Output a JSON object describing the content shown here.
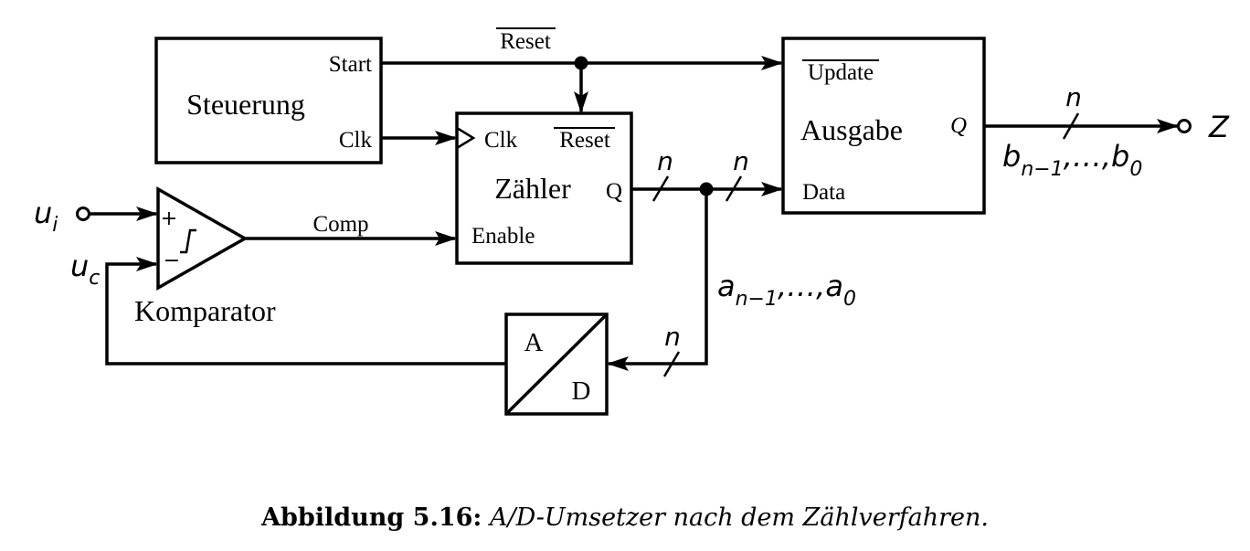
{
  "blocks": {
    "steuerung": {
      "title": "Steuerung",
      "port_start": "Start",
      "port_clk": "Clk"
    },
    "zaehler": {
      "title": "Zähler",
      "port_clk": "Clk",
      "port_reset": "Reset",
      "port_enable": "Enable",
      "port_q": "Q"
    },
    "ausgabe": {
      "title": "Ausgabe",
      "port_update": "Update",
      "port_data": "Data",
      "port_q": "Q"
    },
    "adc": {
      "top": "A",
      "bottom": "D"
    },
    "komparator": {
      "title": "Komparator",
      "plus": "+",
      "minus": "−"
    }
  },
  "signals": {
    "reset": "Reset",
    "comp": "Comp",
    "ui_base": "u",
    "ui_sub": "i",
    "uc_base": "u",
    "uc_sub": "c",
    "output": "Z",
    "bus_width": "n",
    "a_bus": {
      "a1": "a",
      "s1": "n−1",
      "mid": ",…,",
      "a2": "a",
      "s2": "0"
    },
    "b_bus": {
      "a1": "b",
      "s1": "n−1",
      "mid": ",…,",
      "a2": "b",
      "s2": "0"
    }
  },
  "caption": {
    "label": "Abbildung 5.16:",
    "text": "A/D-Umsetzer nach dem Zählverfahren."
  }
}
